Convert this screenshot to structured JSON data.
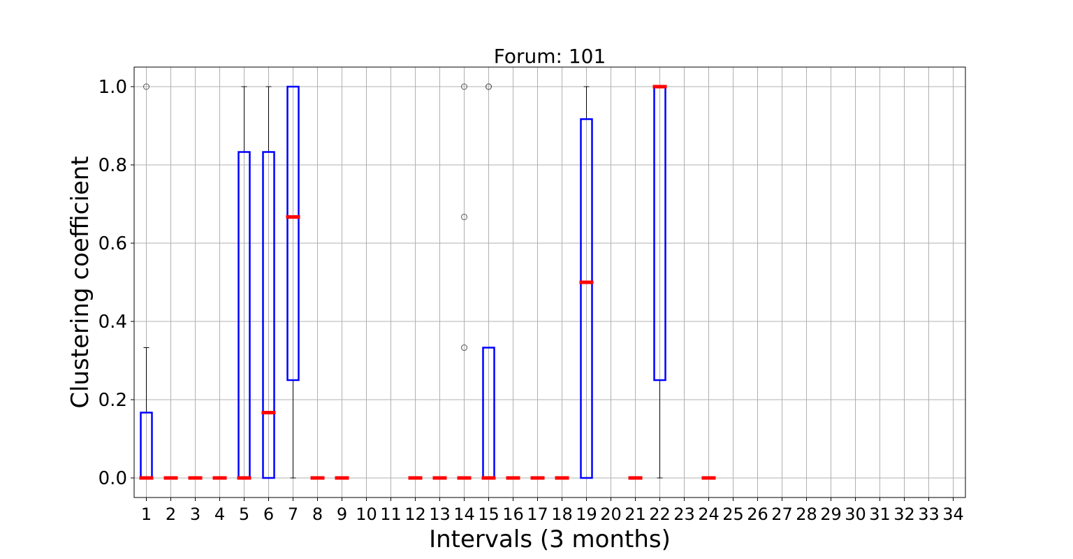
{
  "chart_data": {
    "type": "box",
    "title": "Forum: 101",
    "xlabel": "Intervals (3 months)",
    "ylabel": "Clustering coefficient",
    "ylim": [
      -0.05,
      1.05
    ],
    "yticks": [
      0.0,
      0.2,
      0.4,
      0.6,
      0.8,
      1.0
    ],
    "ytick_labels": [
      "0.0",
      "0.2",
      "0.4",
      "0.6",
      "0.8",
      "1.0"
    ],
    "categories": [
      "1",
      "2",
      "3",
      "4",
      "5",
      "6",
      "7",
      "8",
      "9",
      "10",
      "11",
      "12",
      "13",
      "14",
      "15",
      "16",
      "17",
      "18",
      "19",
      "20",
      "21",
      "22",
      "23",
      "24",
      "25",
      "26",
      "27",
      "28",
      "29",
      "30",
      "31",
      "32",
      "33",
      "34"
    ],
    "grid": true,
    "colors": {
      "box": "#0000ff",
      "median": "#ff0000",
      "whisker": "#000000",
      "grid": "#b0b0b0"
    },
    "boxes": [
      {
        "x": "1",
        "q1": 0.0,
        "median": 0.0,
        "q3": 0.167,
        "whislo": 0.0,
        "whishi": 0.333,
        "fliers": [
          1.0
        ]
      },
      {
        "x": "2",
        "q1": 0.0,
        "median": 0.0,
        "q3": 0.0,
        "whislo": 0.0,
        "whishi": 0.0,
        "fliers": []
      },
      {
        "x": "3",
        "q1": 0.0,
        "median": 0.0,
        "q3": 0.0,
        "whislo": 0.0,
        "whishi": 0.0,
        "fliers": []
      },
      {
        "x": "4",
        "q1": 0.0,
        "median": 0.0,
        "q3": 0.0,
        "whislo": 0.0,
        "whishi": 0.0,
        "fliers": []
      },
      {
        "x": "5",
        "q1": 0.0,
        "median": 0.0,
        "q3": 0.833,
        "whislo": 0.0,
        "whishi": 1.0,
        "fliers": []
      },
      {
        "x": "6",
        "q1": 0.0,
        "median": 0.167,
        "q3": 0.833,
        "whislo": 0.0,
        "whishi": 1.0,
        "fliers": []
      },
      {
        "x": "7",
        "q1": 0.25,
        "median": 0.667,
        "q3": 1.0,
        "whislo": 0.0,
        "whishi": 1.0,
        "fliers": []
      },
      {
        "x": "8",
        "q1": 0.0,
        "median": 0.0,
        "q3": 0.0,
        "whislo": 0.0,
        "whishi": 0.0,
        "fliers": []
      },
      {
        "x": "9",
        "q1": 0.0,
        "median": 0.0,
        "q3": 0.0,
        "whislo": 0.0,
        "whishi": 0.0,
        "fliers": []
      },
      {
        "x": "12",
        "q1": 0.0,
        "median": 0.0,
        "q3": 0.0,
        "whislo": 0.0,
        "whishi": 0.0,
        "fliers": []
      },
      {
        "x": "13",
        "q1": 0.0,
        "median": 0.0,
        "q3": 0.0,
        "whislo": 0.0,
        "whishi": 0.0,
        "fliers": []
      },
      {
        "x": "14",
        "q1": 0.0,
        "median": 0.0,
        "q3": 0.0,
        "whislo": 0.0,
        "whishi": 0.0,
        "fliers": [
          0.333,
          0.667,
          1.0
        ]
      },
      {
        "x": "15",
        "q1": 0.0,
        "median": 0.0,
        "q3": 0.333,
        "whislo": 0.0,
        "whishi": 0.333,
        "fliers": [
          1.0,
          1.0
        ]
      },
      {
        "x": "16",
        "q1": 0.0,
        "median": 0.0,
        "q3": 0.0,
        "whislo": 0.0,
        "whishi": 0.0,
        "fliers": []
      },
      {
        "x": "17",
        "q1": 0.0,
        "median": 0.0,
        "q3": 0.0,
        "whislo": 0.0,
        "whishi": 0.0,
        "fliers": []
      },
      {
        "x": "18",
        "q1": 0.0,
        "median": 0.0,
        "q3": 0.0,
        "whislo": 0.0,
        "whishi": 0.0,
        "fliers": []
      },
      {
        "x": "19",
        "q1": 0.0,
        "median": 0.5,
        "q3": 0.917,
        "whislo": 0.0,
        "whishi": 1.0,
        "fliers": []
      },
      {
        "x": "21",
        "q1": 0.0,
        "median": 0.0,
        "q3": 0.0,
        "whislo": 0.0,
        "whishi": 0.0,
        "fliers": []
      },
      {
        "x": "22",
        "q1": 0.25,
        "median": 1.0,
        "q3": 1.0,
        "whislo": 0.0,
        "whishi": 1.0,
        "fliers": []
      },
      {
        "x": "24",
        "q1": 0.0,
        "median": 0.0,
        "q3": 0.0,
        "whislo": 0.0,
        "whishi": 0.0,
        "fliers": []
      }
    ]
  }
}
